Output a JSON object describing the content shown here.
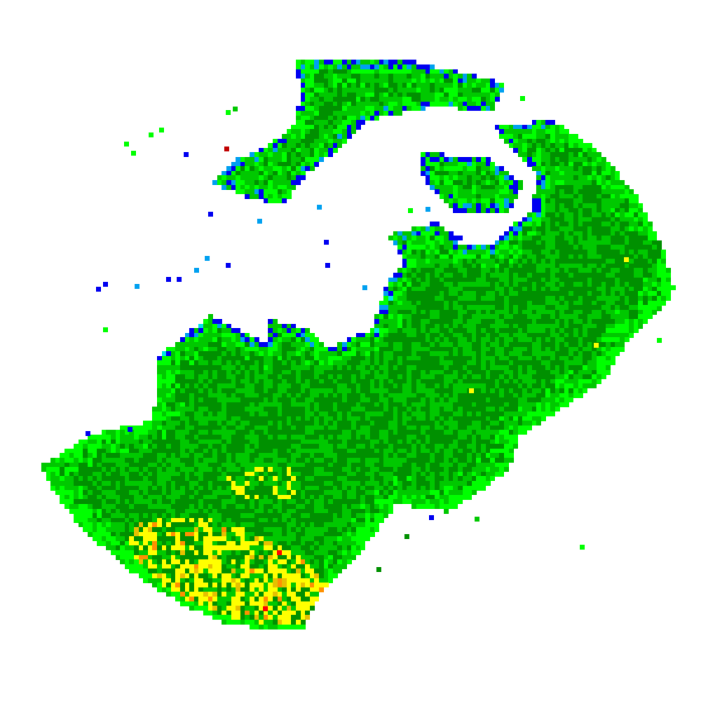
{
  "image": {
    "kind": "radar-reflectivity-echoes",
    "background_color": "#ffffff"
  },
  "colors": {
    "very_light": "#00e6e6",
    "light_blue": "#00a0f0",
    "blue": "#0000f0",
    "light_green": "#00ff00",
    "medium_green": "#00c800",
    "dark_green": "#009000",
    "yellow": "#ffff00",
    "gold": "#e6c000",
    "orange": "#ff9000",
    "red": "#ff0000",
    "dark_red": "#c00000"
  }
}
